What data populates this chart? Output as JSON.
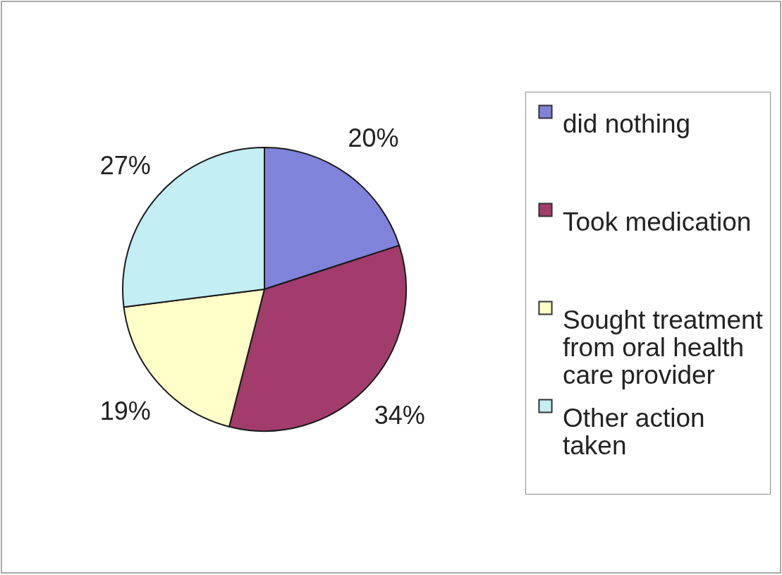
{
  "chart_data": {
    "type": "pie",
    "categories": [
      "did nothing",
      "Took medication",
      "Sought treatment from oral health care provider",
      "Other action taken"
    ],
    "values": [
      20,
      34,
      19,
      27
    ],
    "colors": [
      "#7f84da",
      "#a23c6c",
      "#ffffc8",
      "#c2eef4"
    ],
    "value_labels": [
      "20%",
      "34%",
      "19%",
      "27%"
    ],
    "legend": "right"
  }
}
